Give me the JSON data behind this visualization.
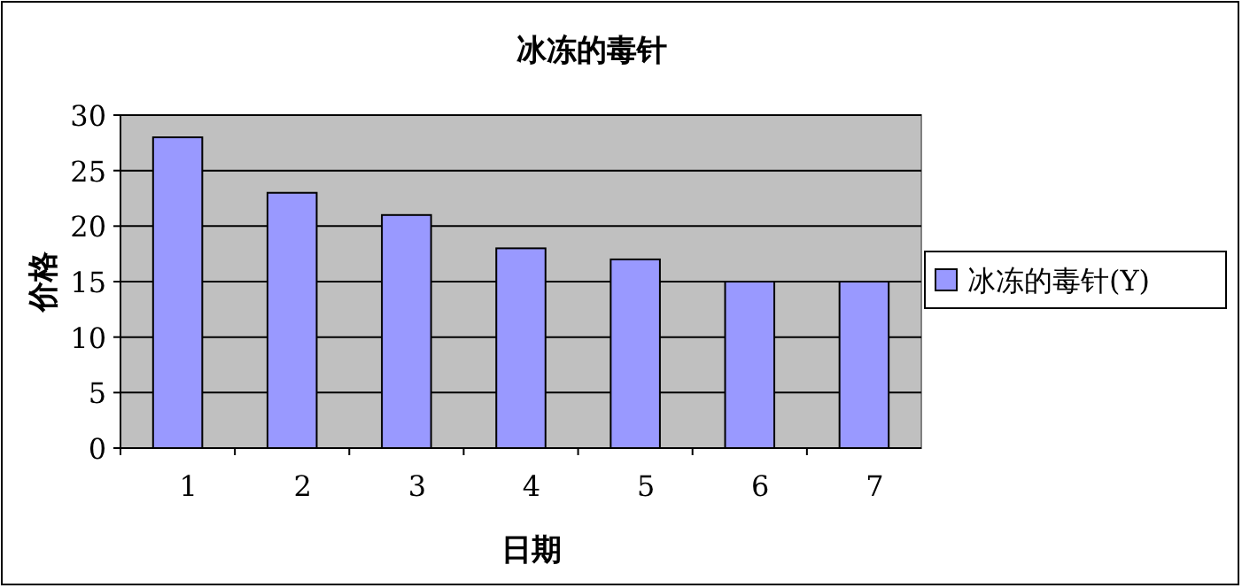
{
  "chart_data": {
    "type": "bar",
    "title": "冰冻的毒针",
    "xlabel": "日期",
    "ylabel": "价格",
    "categories": [
      "1",
      "2",
      "3",
      "4",
      "5",
      "6",
      "7"
    ],
    "series": [
      {
        "name": "冰冻的毒针(Y)",
        "color": "#9999ff",
        "values": [
          28,
          23,
          21,
          18,
          17,
          15,
          15
        ]
      }
    ],
    "ylim": [
      0,
      30
    ],
    "yticks": [
      0,
      5,
      10,
      15,
      20,
      25,
      30
    ],
    "grid": "y",
    "legend": "right"
  }
}
